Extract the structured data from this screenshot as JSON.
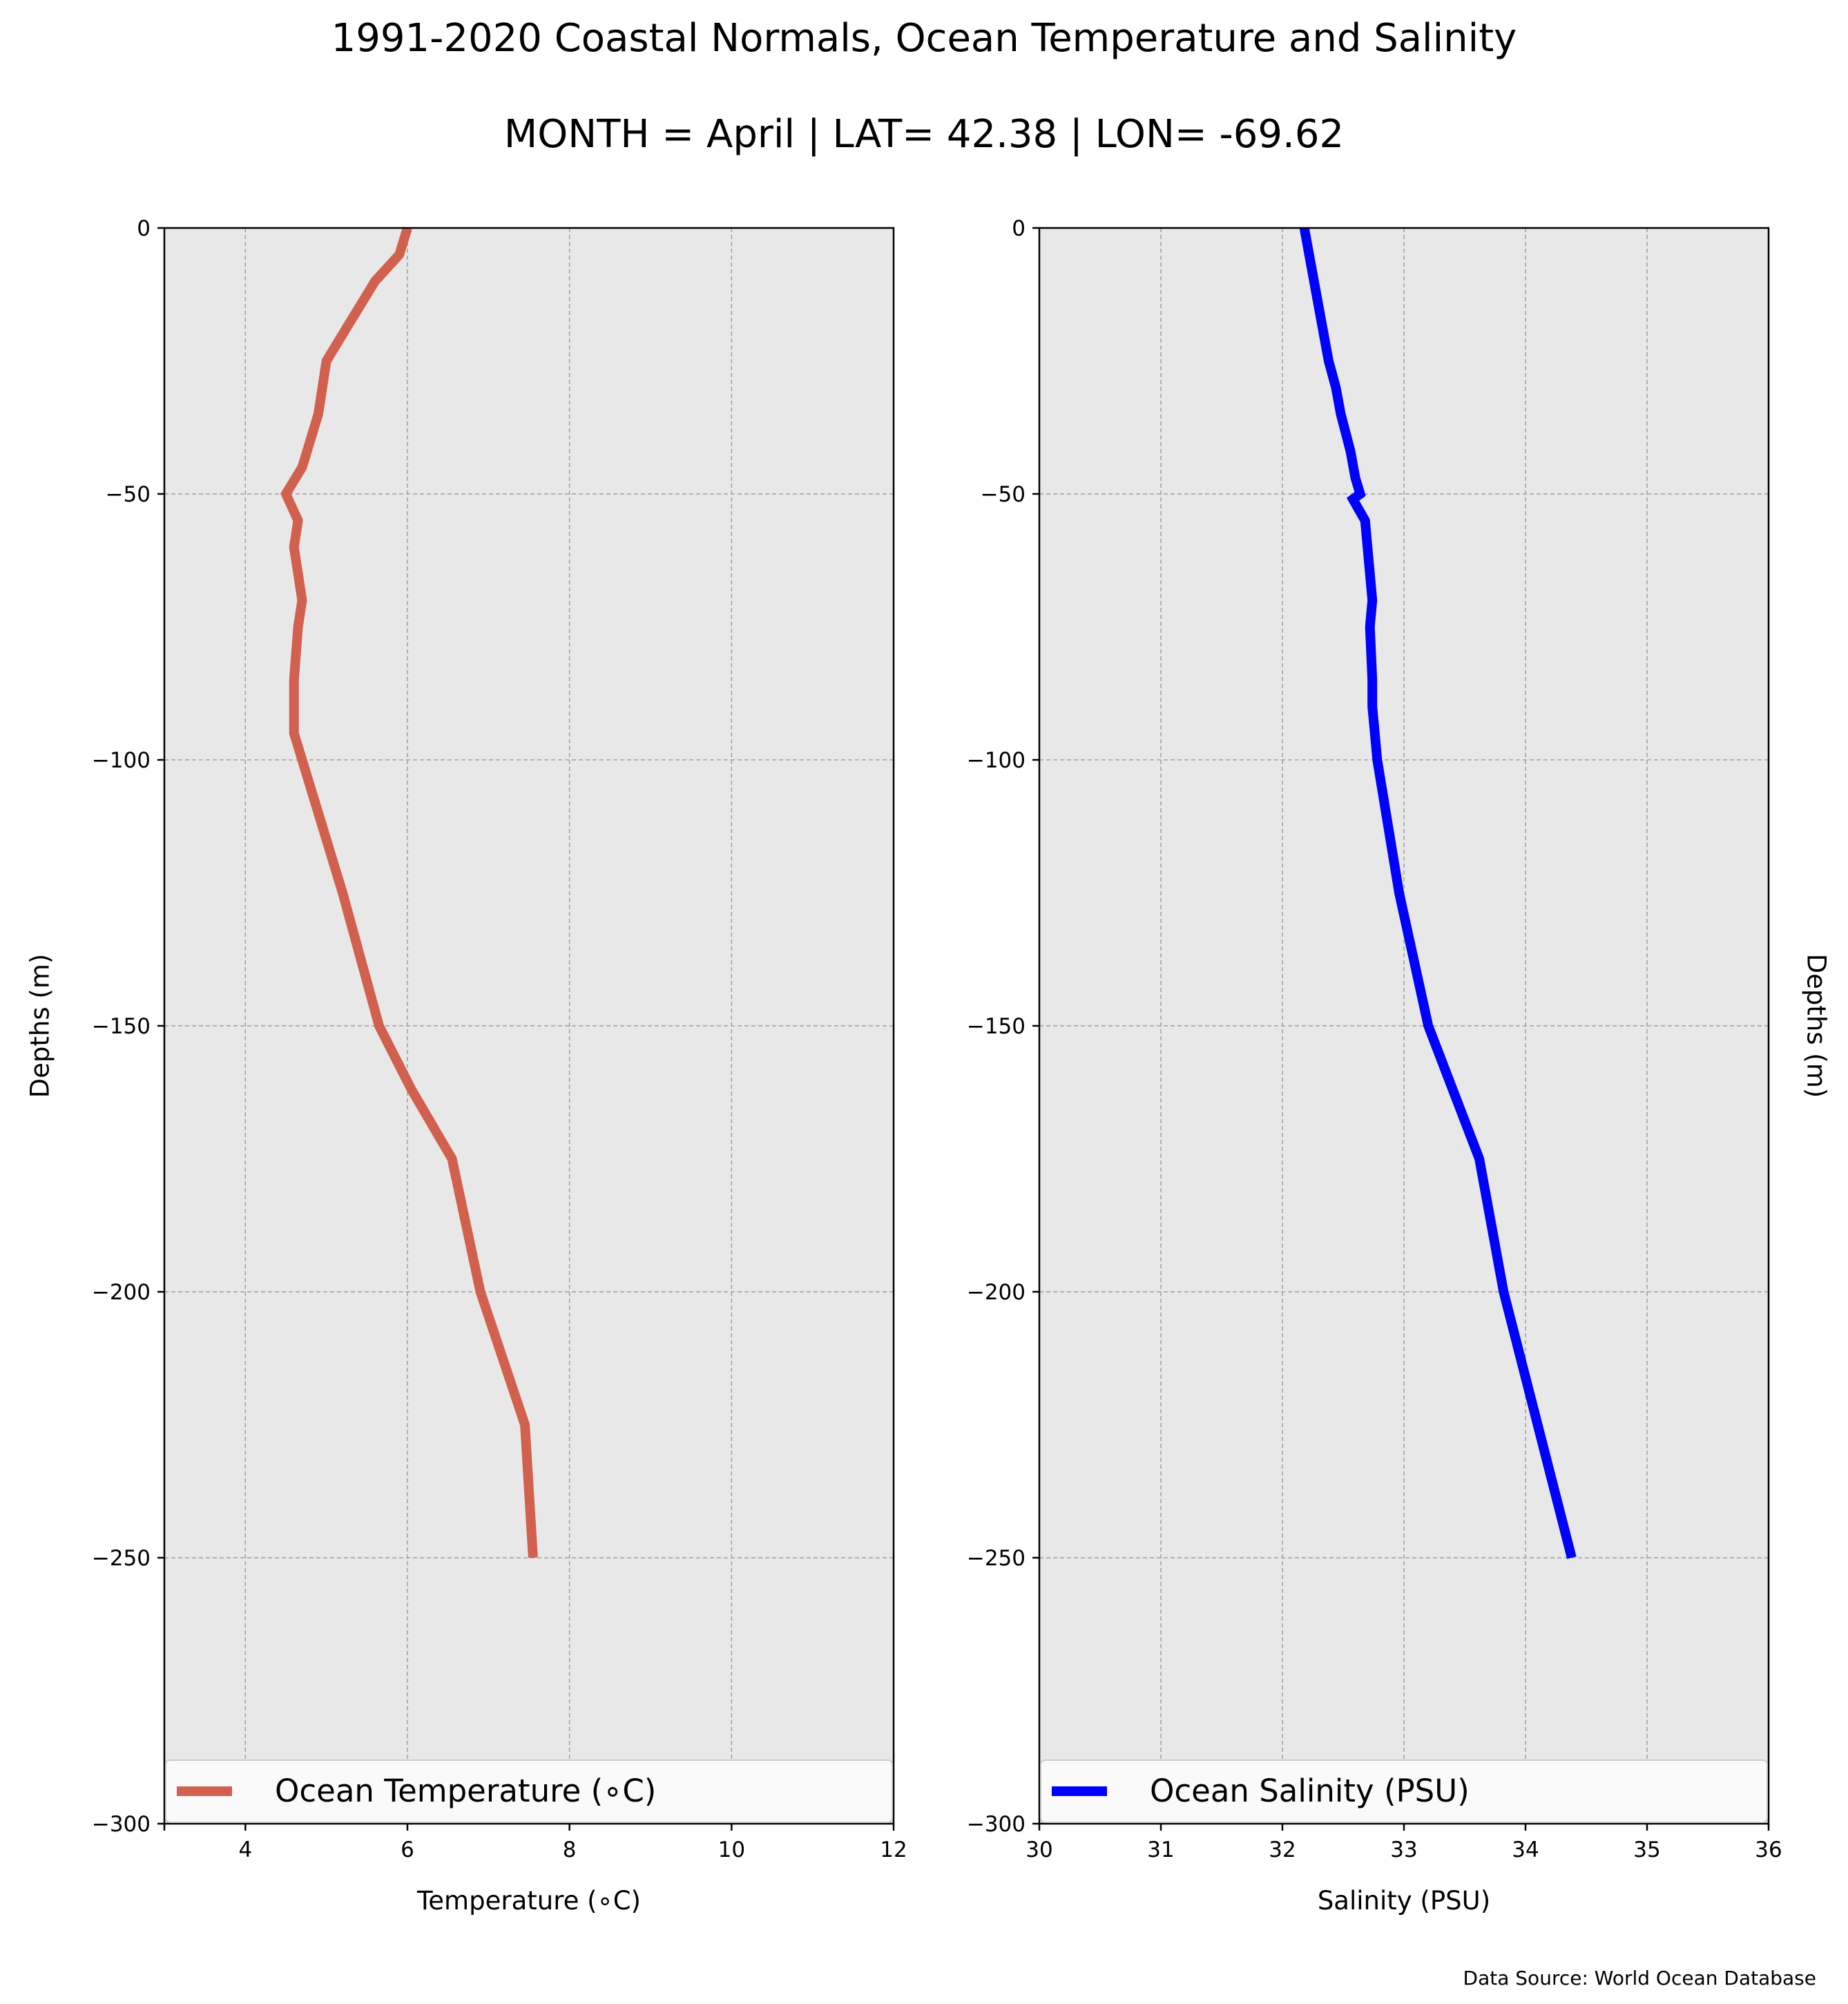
{
  "figure": {
    "title": "1991-2020 Coastal Normals, Ocean Temperature and Salinity",
    "subtitle": "MONTH = April | LAT= 42.38 | LON= -69.62",
    "source": "Data Source: World Ocean Database",
    "background": "#e8e8e8",
    "grid_color": "#9e9e9e"
  },
  "chart_data": [
    {
      "type": "line",
      "title": "",
      "xlabel": "Temperature ($^\\circ$C)",
      "xlabel_display": "Temperature (∘C)",
      "ylabel": "Depths (m)",
      "ylabel_side": "left",
      "xlim": [
        3,
        12
      ],
      "ylim": [
        -300,
        0
      ],
      "xticks": [
        4,
        6,
        8,
        10,
        12
      ],
      "xtick_labels": [
        "4",
        "6",
        "8",
        "10",
        "12"
      ],
      "yticks": [
        0,
        -50,
        -100,
        -150,
        -200,
        -250,
        -300
      ],
      "ytick_labels": [
        "0",
        "−50",
        "−100",
        "−150",
        "−200",
        "−250",
        "−300"
      ],
      "grid": true,
      "legend": "bottom",
      "series": [
        {
          "name": "Ocean Temperature (∘C)",
          "color": "#d1604f",
          "x": [
            6.0,
            5.9,
            5.6,
            5.4,
            5.2,
            5.0,
            4.9,
            4.7,
            4.5,
            4.65,
            4.6,
            4.65,
            4.7,
            4.65,
            4.6,
            4.6,
            4.6,
            4.7,
            5.2,
            5.65,
            6.05,
            6.55,
            6.9,
            7.45,
            7.55
          ],
          "y": [
            0,
            -5,
            -10,
            -15,
            -20,
            -25,
            -35,
            -45,
            -50,
            -55,
            -60,
            -65,
            -70,
            -75,
            -85,
            -90,
            -95,
            -100,
            -125,
            -150,
            -162,
            -175,
            -200,
            -225,
            -250
          ]
        }
      ]
    },
    {
      "type": "line",
      "title": "",
      "xlabel": "Salinity (PSU)",
      "ylabel": "Depths (m)",
      "ylabel_side": "right",
      "xlim": [
        30,
        36
      ],
      "ylim": [
        -300,
        0
      ],
      "xticks": [
        30,
        31,
        32,
        33,
        34,
        35,
        36
      ],
      "xtick_labels": [
        "30",
        "31",
        "32",
        "33",
        "34",
        "35",
        "36"
      ],
      "yticks": [
        0,
        -50,
        -100,
        -150,
        -200,
        -250,
        -300
      ],
      "ytick_labels": [
        "0",
        "−50",
        "−100",
        "−150",
        "−200",
        "−250",
        "−300"
      ],
      "grid": true,
      "legend": "bottom",
      "series": [
        {
          "name": "Ocean Salinity (PSU)",
          "color": "#0000ff",
          "x": [
            32.18,
            32.22,
            32.3,
            32.38,
            32.44,
            32.48,
            32.56,
            32.6,
            32.64,
            32.58,
            32.68,
            32.7,
            32.74,
            32.72,
            32.74,
            32.74,
            32.76,
            32.78,
            32.96,
            33.2,
            33.62,
            33.82,
            34.38
          ],
          "y": [
            0,
            -5,
            -15,
            -25,
            -30,
            -35,
            -42,
            -47,
            -50,
            -51,
            -55,
            -60,
            -70,
            -75,
            -85,
            -90,
            -95,
            -100,
            -125,
            -150,
            -175,
            -200,
            -250
          ]
        }
      ]
    }
  ]
}
